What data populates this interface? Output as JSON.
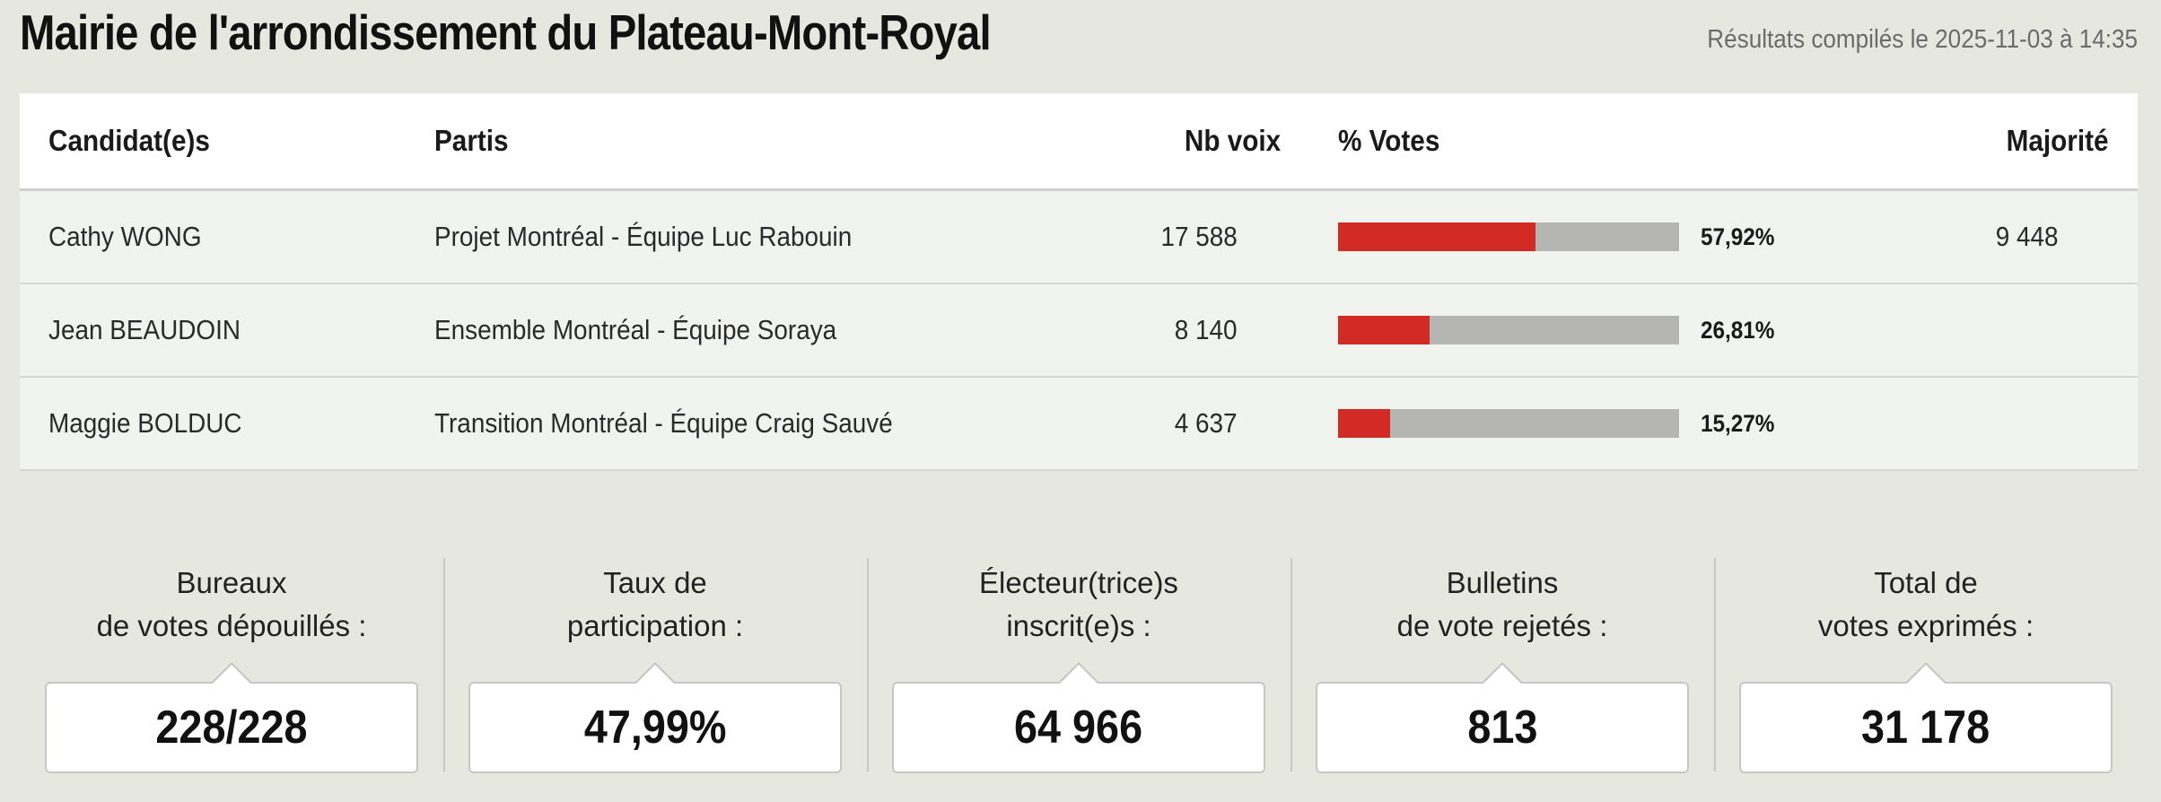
{
  "header": {
    "title": "Mairie de l'arrondissement du Plateau-Mont-Royal",
    "compiled": "Résultats compilés le 2025-11-03 à 14:35"
  },
  "table": {
    "columns": [
      "Candidat(e)s",
      "Partis",
      "Nb voix",
      "% Votes",
      "Majorité"
    ],
    "rows": [
      {
        "candidate": "Cathy WONG",
        "party": "Projet Montréal - Équipe Luc Rabouin",
        "votes": "17 588",
        "pct": "57,92%",
        "share": 0.5792,
        "majority": "9 448"
      },
      {
        "candidate": "Jean BEAUDOIN",
        "party": "Ensemble Montréal - Équipe Soraya",
        "votes": "8 140",
        "pct": "26,81%",
        "share": 0.2681,
        "majority": ""
      },
      {
        "candidate": "Maggie BOLDUC",
        "party": "Transition Montréal - Équipe Craig Sauvé",
        "votes": "4 637",
        "pct": "15,27%",
        "share": 0.1527,
        "majority": ""
      }
    ]
  },
  "stats": [
    {
      "label_1": "Bureaux",
      "label_2": "de votes dépouillés :",
      "value": "228/228"
    },
    {
      "label_1": "Taux de",
      "label_2": "participation :",
      "value": "47,99%"
    },
    {
      "label_1": "Électeur(trice)s",
      "label_2": "inscrit(e)s :",
      "value": "64 966"
    },
    {
      "label_1": "Bulletins",
      "label_2": "de vote rejetés :",
      "value": "813"
    },
    {
      "label_1": "Total de",
      "label_2": "votes exprimés :",
      "value": "31 178"
    }
  ],
  "colors": {
    "bar_fill": "#d22b26",
    "bar_track": "#b5b6b1",
    "background": "#e6e8e0"
  }
}
